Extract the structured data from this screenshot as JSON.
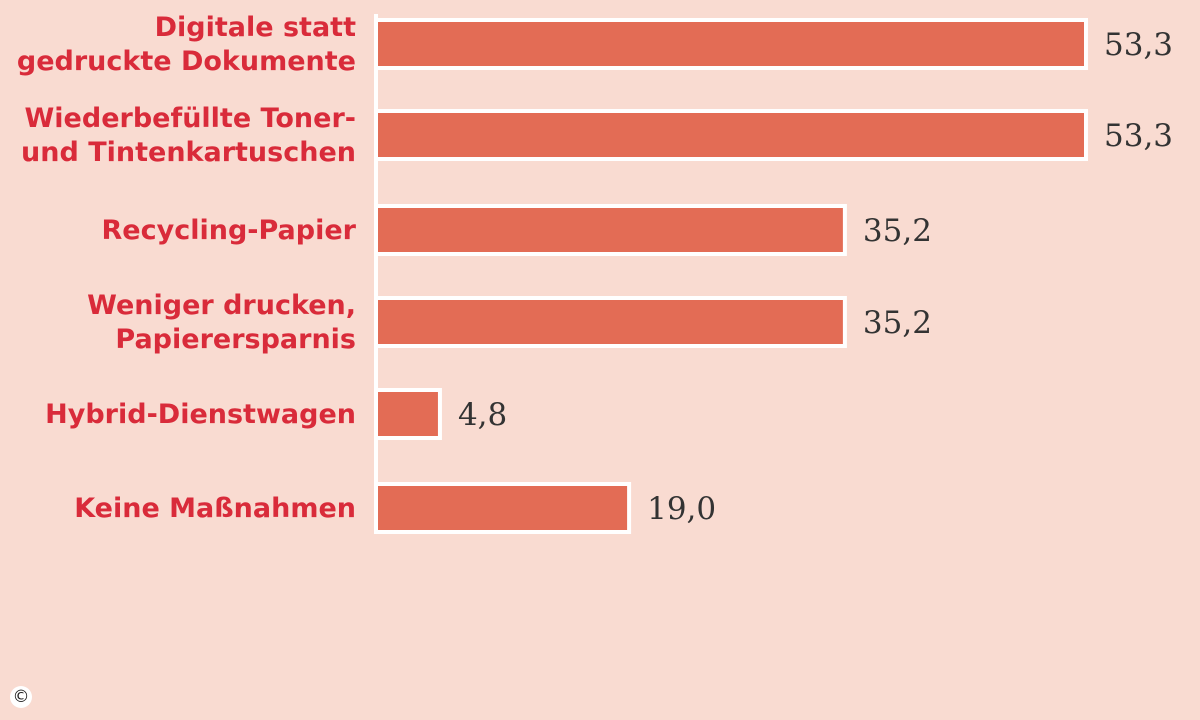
{
  "chart_data": {
    "type": "bar",
    "orientation": "horizontal",
    "categories": [
      [
        "Digitale statt",
        "gedruckte Dokumente"
      ],
      [
        "Wiederbefüllte Toner-",
        "und Tintenkartuschen"
      ],
      [
        "Recycling-Papier"
      ],
      [
        "Weniger drucken,",
        "Papierersparnis"
      ],
      [
        "Hybrid-Dienstwagen"
      ],
      [
        "Keine Maßnahmen"
      ]
    ],
    "values": [
      53.3,
      53.3,
      35.2,
      35.2,
      4.8,
      19.0
    ],
    "value_labels": [
      "53,3",
      "53,3",
      "35,2",
      "35,2",
      "4,8",
      "19,0"
    ],
    "xlim": [
      0,
      53.3
    ],
    "grid": false,
    "colors": {
      "background": "#f9dbd1",
      "bar": "#e36c55",
      "bar_outline": "#ffffff",
      "label": "#d92b3a",
      "value": "#333333",
      "axis": "#ffffff"
    }
  },
  "footer": {
    "copyright_symbol": "©"
  }
}
